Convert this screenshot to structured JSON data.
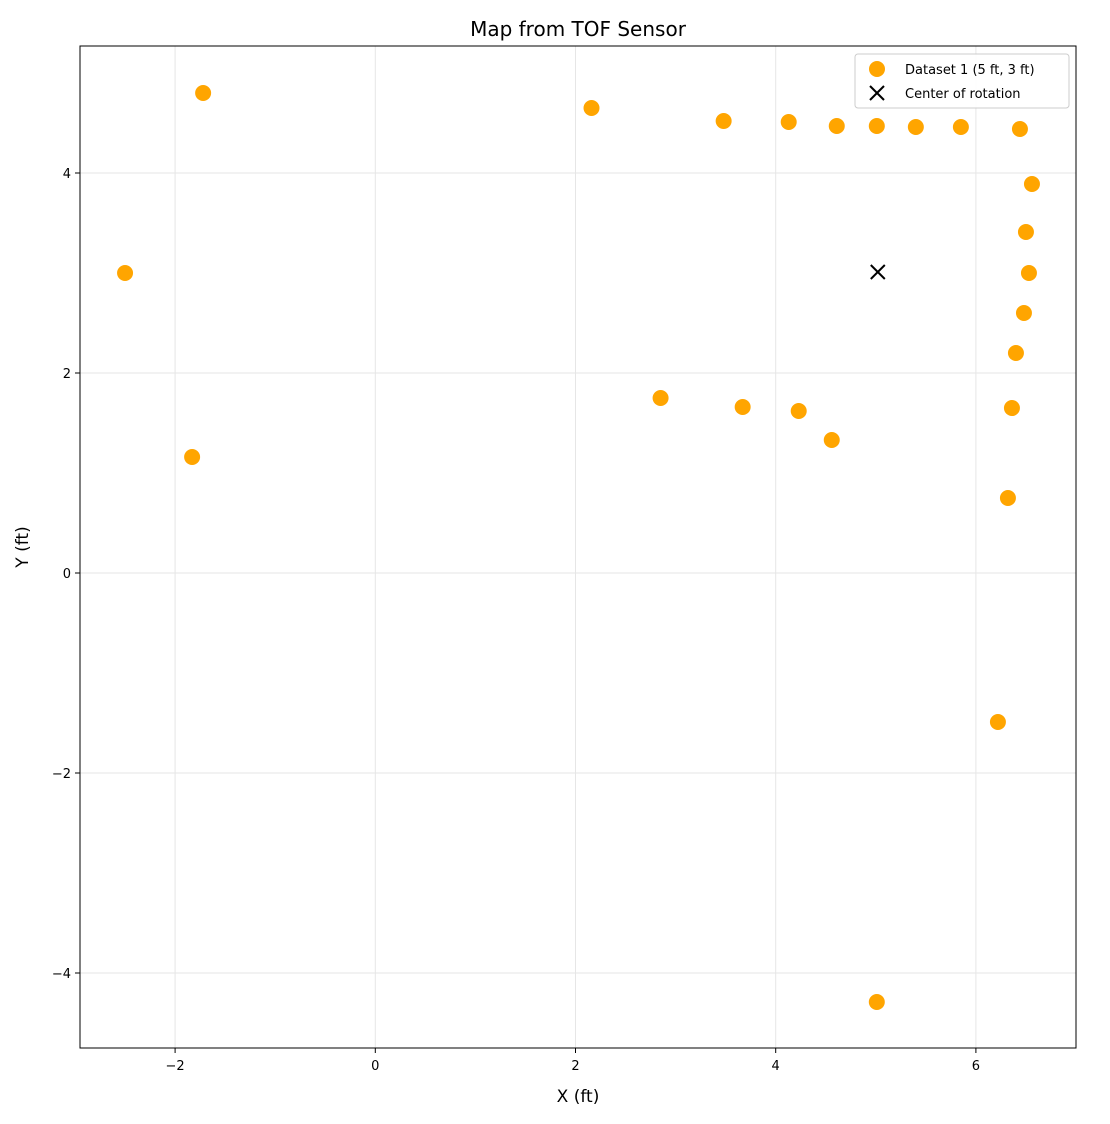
{
  "chart_data": {
    "type": "scatter",
    "title": "Map from TOF Sensor",
    "xlabel": "X (ft)",
    "ylabel": "Y (ft)",
    "xlim": [
      -2.95,
      7.0
    ],
    "ylim": [
      -4.75,
      5.27
    ],
    "xticks": [
      -2,
      0,
      2,
      4,
      6
    ],
    "yticks": [
      -4,
      -2,
      0,
      2,
      4
    ],
    "xtick_labels": [
      "−2",
      "0",
      "2",
      "4",
      "6"
    ],
    "ytick_labels": [
      "−4",
      "−2",
      "0",
      "2",
      "4"
    ],
    "grid": true,
    "legend_position": "upper right",
    "series": [
      {
        "name": "Dataset 1 (5 ft, 3 ft)",
        "marker": "circle",
        "color": "#ffa500",
        "points": [
          {
            "x": -2.5,
            "y": 3.0
          },
          {
            "x": -1.72,
            "y": 4.8
          },
          {
            "x": -1.83,
            "y": 1.16
          },
          {
            "x": 2.16,
            "y": 4.65
          },
          {
            "x": 3.48,
            "y": 4.52
          },
          {
            "x": 4.13,
            "y": 4.51
          },
          {
            "x": 4.61,
            "y": 4.47
          },
          {
            "x": 5.01,
            "y": 4.47
          },
          {
            "x": 5.4,
            "y": 4.46
          },
          {
            "x": 5.85,
            "y": 4.46
          },
          {
            "x": 6.44,
            "y": 4.44
          },
          {
            "x": 6.56,
            "y": 3.89
          },
          {
            "x": 6.5,
            "y": 3.41
          },
          {
            "x": 6.53,
            "y": 3.0
          },
          {
            "x": 6.48,
            "y": 2.6
          },
          {
            "x": 6.4,
            "y": 2.2
          },
          {
            "x": 6.36,
            "y": 1.65
          },
          {
            "x": 6.32,
            "y": 0.75
          },
          {
            "x": 2.85,
            "y": 1.75
          },
          {
            "x": 3.67,
            "y": 1.66
          },
          {
            "x": 4.23,
            "y": 1.62
          },
          {
            "x": 4.56,
            "y": 1.33
          },
          {
            "x": 6.22,
            "y": -1.49
          },
          {
            "x": 5.01,
            "y": -4.29
          }
        ]
      },
      {
        "name": "Center of rotation",
        "marker": "x",
        "color": "#000000",
        "points": [
          {
            "x": 5.02,
            "y": 3.01
          }
        ]
      }
    ]
  }
}
